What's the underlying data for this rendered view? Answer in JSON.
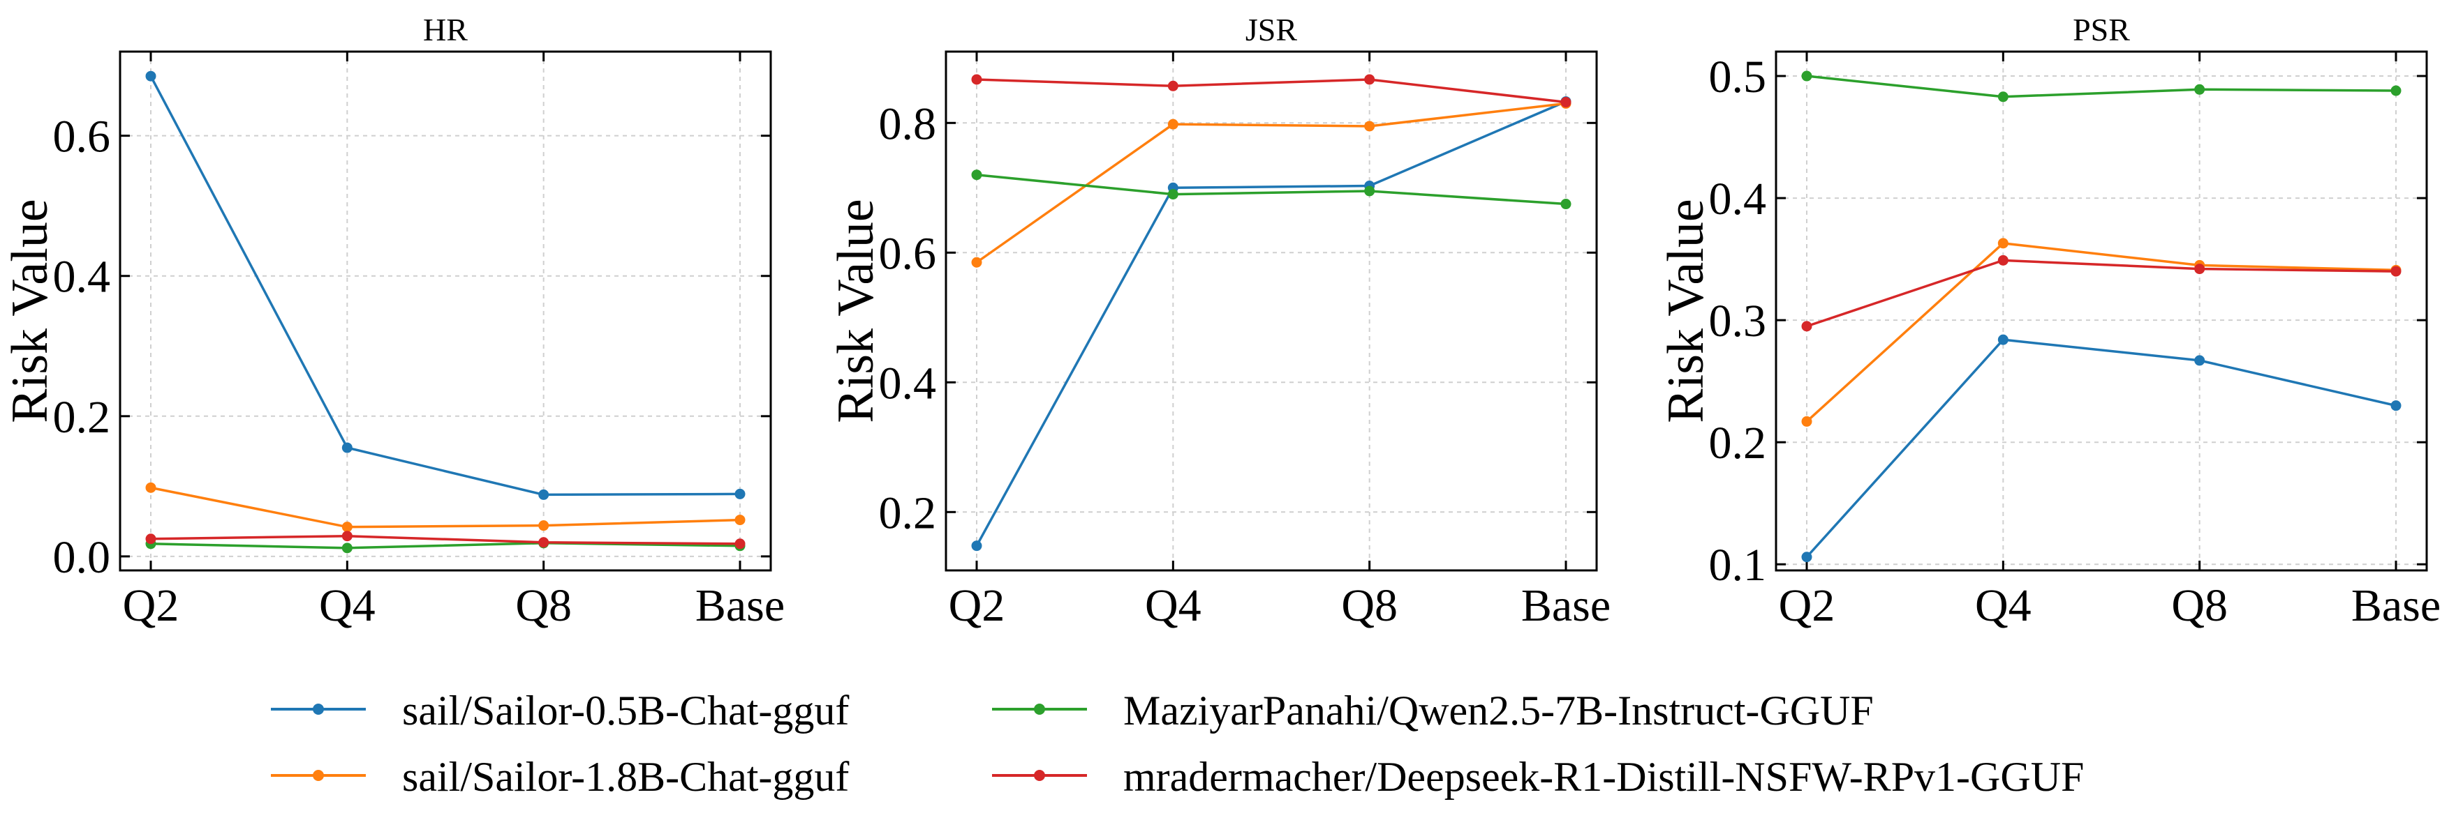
{
  "chart_data": [
    {
      "type": "line",
      "title": "HR",
      "xlabel": "",
      "ylabel": "Risk Value",
      "categories": [
        "Q2",
        "Q4",
        "Q8",
        "Base"
      ],
      "ylim": [
        -0.02,
        0.72
      ],
      "yticks": [
        0.0,
        0.2,
        0.4,
        0.6
      ],
      "ytick_labels": [
        "0.0",
        "0.2",
        "0.4",
        "0.6"
      ],
      "grid": true,
      "series": [
        {
          "name": "sail/Sailor-0.5B-Chat-gguf",
          "values": [
            0.685,
            0.155,
            0.088,
            0.089
          ]
        },
        {
          "name": "sail/Sailor-1.8B-Chat-gguf",
          "values": [
            0.098,
            0.042,
            0.044,
            0.052
          ]
        },
        {
          "name": "MaziyarPanahi/Qwen2.5-7B-Instruct-GGUF",
          "values": [
            0.018,
            0.012,
            0.019,
            0.015
          ]
        },
        {
          "name": "mradermacher/Deepseek-R1-Distill-NSFW-RPv1-GGUF",
          "values": [
            0.025,
            0.029,
            0.02,
            0.018
          ]
        }
      ]
    },
    {
      "type": "line",
      "title": "JSR",
      "xlabel": "",
      "ylabel": "Risk Value",
      "categories": [
        "Q2",
        "Q4",
        "Q8",
        "Base"
      ],
      "ylim": [
        0.11,
        0.91
      ],
      "yticks": [
        0.2,
        0.4,
        0.6,
        0.8
      ],
      "ytick_labels": [
        "0.2",
        "0.4",
        "0.6",
        "0.8"
      ],
      "grid": true,
      "series": [
        {
          "name": "sail/Sailor-0.5B-Chat-gguf",
          "values": [
            0.148,
            0.7,
            0.703,
            0.833
          ]
        },
        {
          "name": "sail/Sailor-1.8B-Chat-gguf",
          "values": [
            0.585,
            0.798,
            0.795,
            0.83
          ]
        },
        {
          "name": "MaziyarPanahi/Qwen2.5-7B-Instruct-GGUF",
          "values": [
            0.72,
            0.69,
            0.695,
            0.675
          ]
        },
        {
          "name": "mradermacher/Deepseek-R1-Distill-NSFW-RPv1-GGUF",
          "values": [
            0.867,
            0.857,
            0.867,
            0.832
          ]
        }
      ]
    },
    {
      "type": "line",
      "title": "PSR",
      "xlabel": "",
      "ylabel": "Risk Value",
      "categories": [
        "Q2",
        "Q4",
        "Q8",
        "Base"
      ],
      "ylim": [
        0.095,
        0.52
      ],
      "yticks": [
        0.1,
        0.2,
        0.3,
        0.4,
        0.5
      ],
      "ytick_labels": [
        "0.1",
        "0.2",
        "0.3",
        "0.4",
        "0.5"
      ],
      "grid": true,
      "series": [
        {
          "name": "sail/Sailor-0.5B-Chat-gguf",
          "values": [
            0.106,
            0.284,
            0.267,
            0.23
          ]
        },
        {
          "name": "sail/Sailor-1.8B-Chat-gguf",
          "values": [
            0.217,
            0.363,
            0.345,
            0.341
          ]
        },
        {
          "name": "MaziyarPanahi/Qwen2.5-7B-Instruct-GGUF",
          "values": [
            0.5,
            0.483,
            0.489,
            0.488
          ]
        },
        {
          "name": "mradermacher/Deepseek-R1-Distill-NSFW-RPv1-GGUF",
          "values": [
            0.295,
            0.349,
            0.342,
            0.34
          ]
        }
      ]
    }
  ],
  "legend": {
    "placement": "bottom-center",
    "entries": [
      {
        "label": "sail/Sailor-0.5B-Chat-gguf",
        "color": "#1f77b4"
      },
      {
        "label": "MaziyarPanahi/Qwen2.5-7B-Instruct-GGUF",
        "color": "#2ca02c"
      },
      {
        "label": "sail/Sailor-1.8B-Chat-gguf",
        "color": "#ff7f0e"
      },
      {
        "label": "mradermacher/Deepseek-R1-Distill-NSFW-RPv1-GGUF",
        "color": "#d62728"
      }
    ]
  },
  "colors": [
    "#1f77b4",
    "#ff7f0e",
    "#2ca02c",
    "#d62728"
  ]
}
